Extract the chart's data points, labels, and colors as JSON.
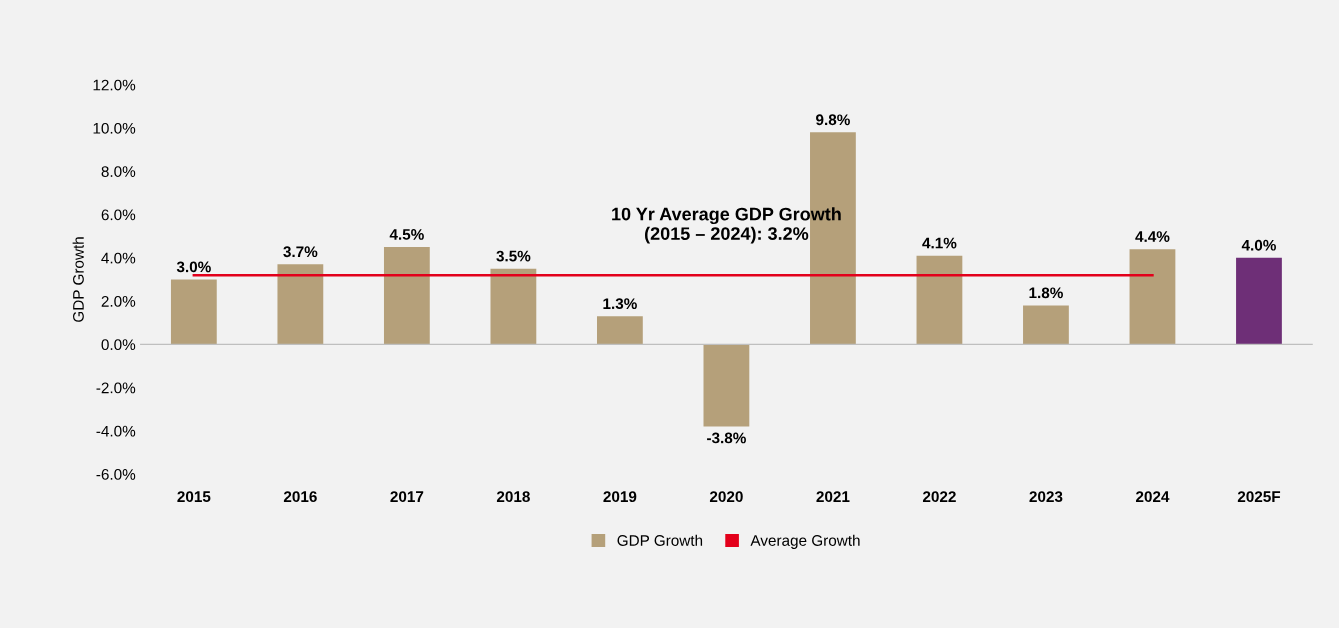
{
  "chart_data": {
    "type": "bar",
    "ylabel": "GDP Growth",
    "categories": [
      "2015",
      "2016",
      "2017",
      "2018",
      "2019",
      "2020",
      "2021",
      "2022",
      "2023",
      "2024",
      "2025F"
    ],
    "series": [
      {
        "name": "GDP Growth",
        "color": "#b5a07a",
        "colors": [
          "#b5a07a",
          "#b5a07a",
          "#b5a07a",
          "#b5a07a",
          "#b5a07a",
          "#b5a07a",
          "#b5a07a",
          "#b5a07a",
          "#b5a07a",
          "#b5a07a",
          "#6e2f77"
        ],
        "values": [
          3.0,
          3.7,
          4.5,
          3.5,
          1.3,
          -3.8,
          9.8,
          4.1,
          1.8,
          4.4,
          4.0
        ],
        "value_labels": [
          "3.0%",
          "3.7%",
          "4.5%",
          "3.5%",
          "1.3%",
          "-3.8%",
          "9.8%",
          "4.1%",
          "1.8%",
          "4.4%",
          "4.0%"
        ]
      },
      {
        "name": "Average Growth",
        "type": "line",
        "color": "#e3001b",
        "values": [
          3.2,
          3.2,
          3.2,
          3.2,
          3.2,
          3.2,
          3.2,
          3.2,
          3.2,
          3.2,
          null
        ]
      }
    ],
    "annotations": [
      "10 Yr Average GDP Growth\n(2015 – 2024): 3.2%"
    ],
    "ylim": [
      -6,
      12
    ],
    "yticks": [
      {
        "value": -6,
        "label": "-6.0%"
      },
      {
        "value": -4,
        "label": "-4.0%"
      },
      {
        "value": -2,
        "label": "-2.0%"
      },
      {
        "value": 0,
        "label": "0.0%"
      },
      {
        "value": 2,
        "label": "2.0%"
      },
      {
        "value": 4,
        "label": "4.0%"
      },
      {
        "value": 6,
        "label": "6.0%"
      },
      {
        "value": 8,
        "label": "8.0%"
      },
      {
        "value": 10,
        "label": "10.0%"
      },
      {
        "value": 12,
        "label": "12.0%"
      }
    ],
    "legend": "bottom",
    "marker": "none"
  }
}
